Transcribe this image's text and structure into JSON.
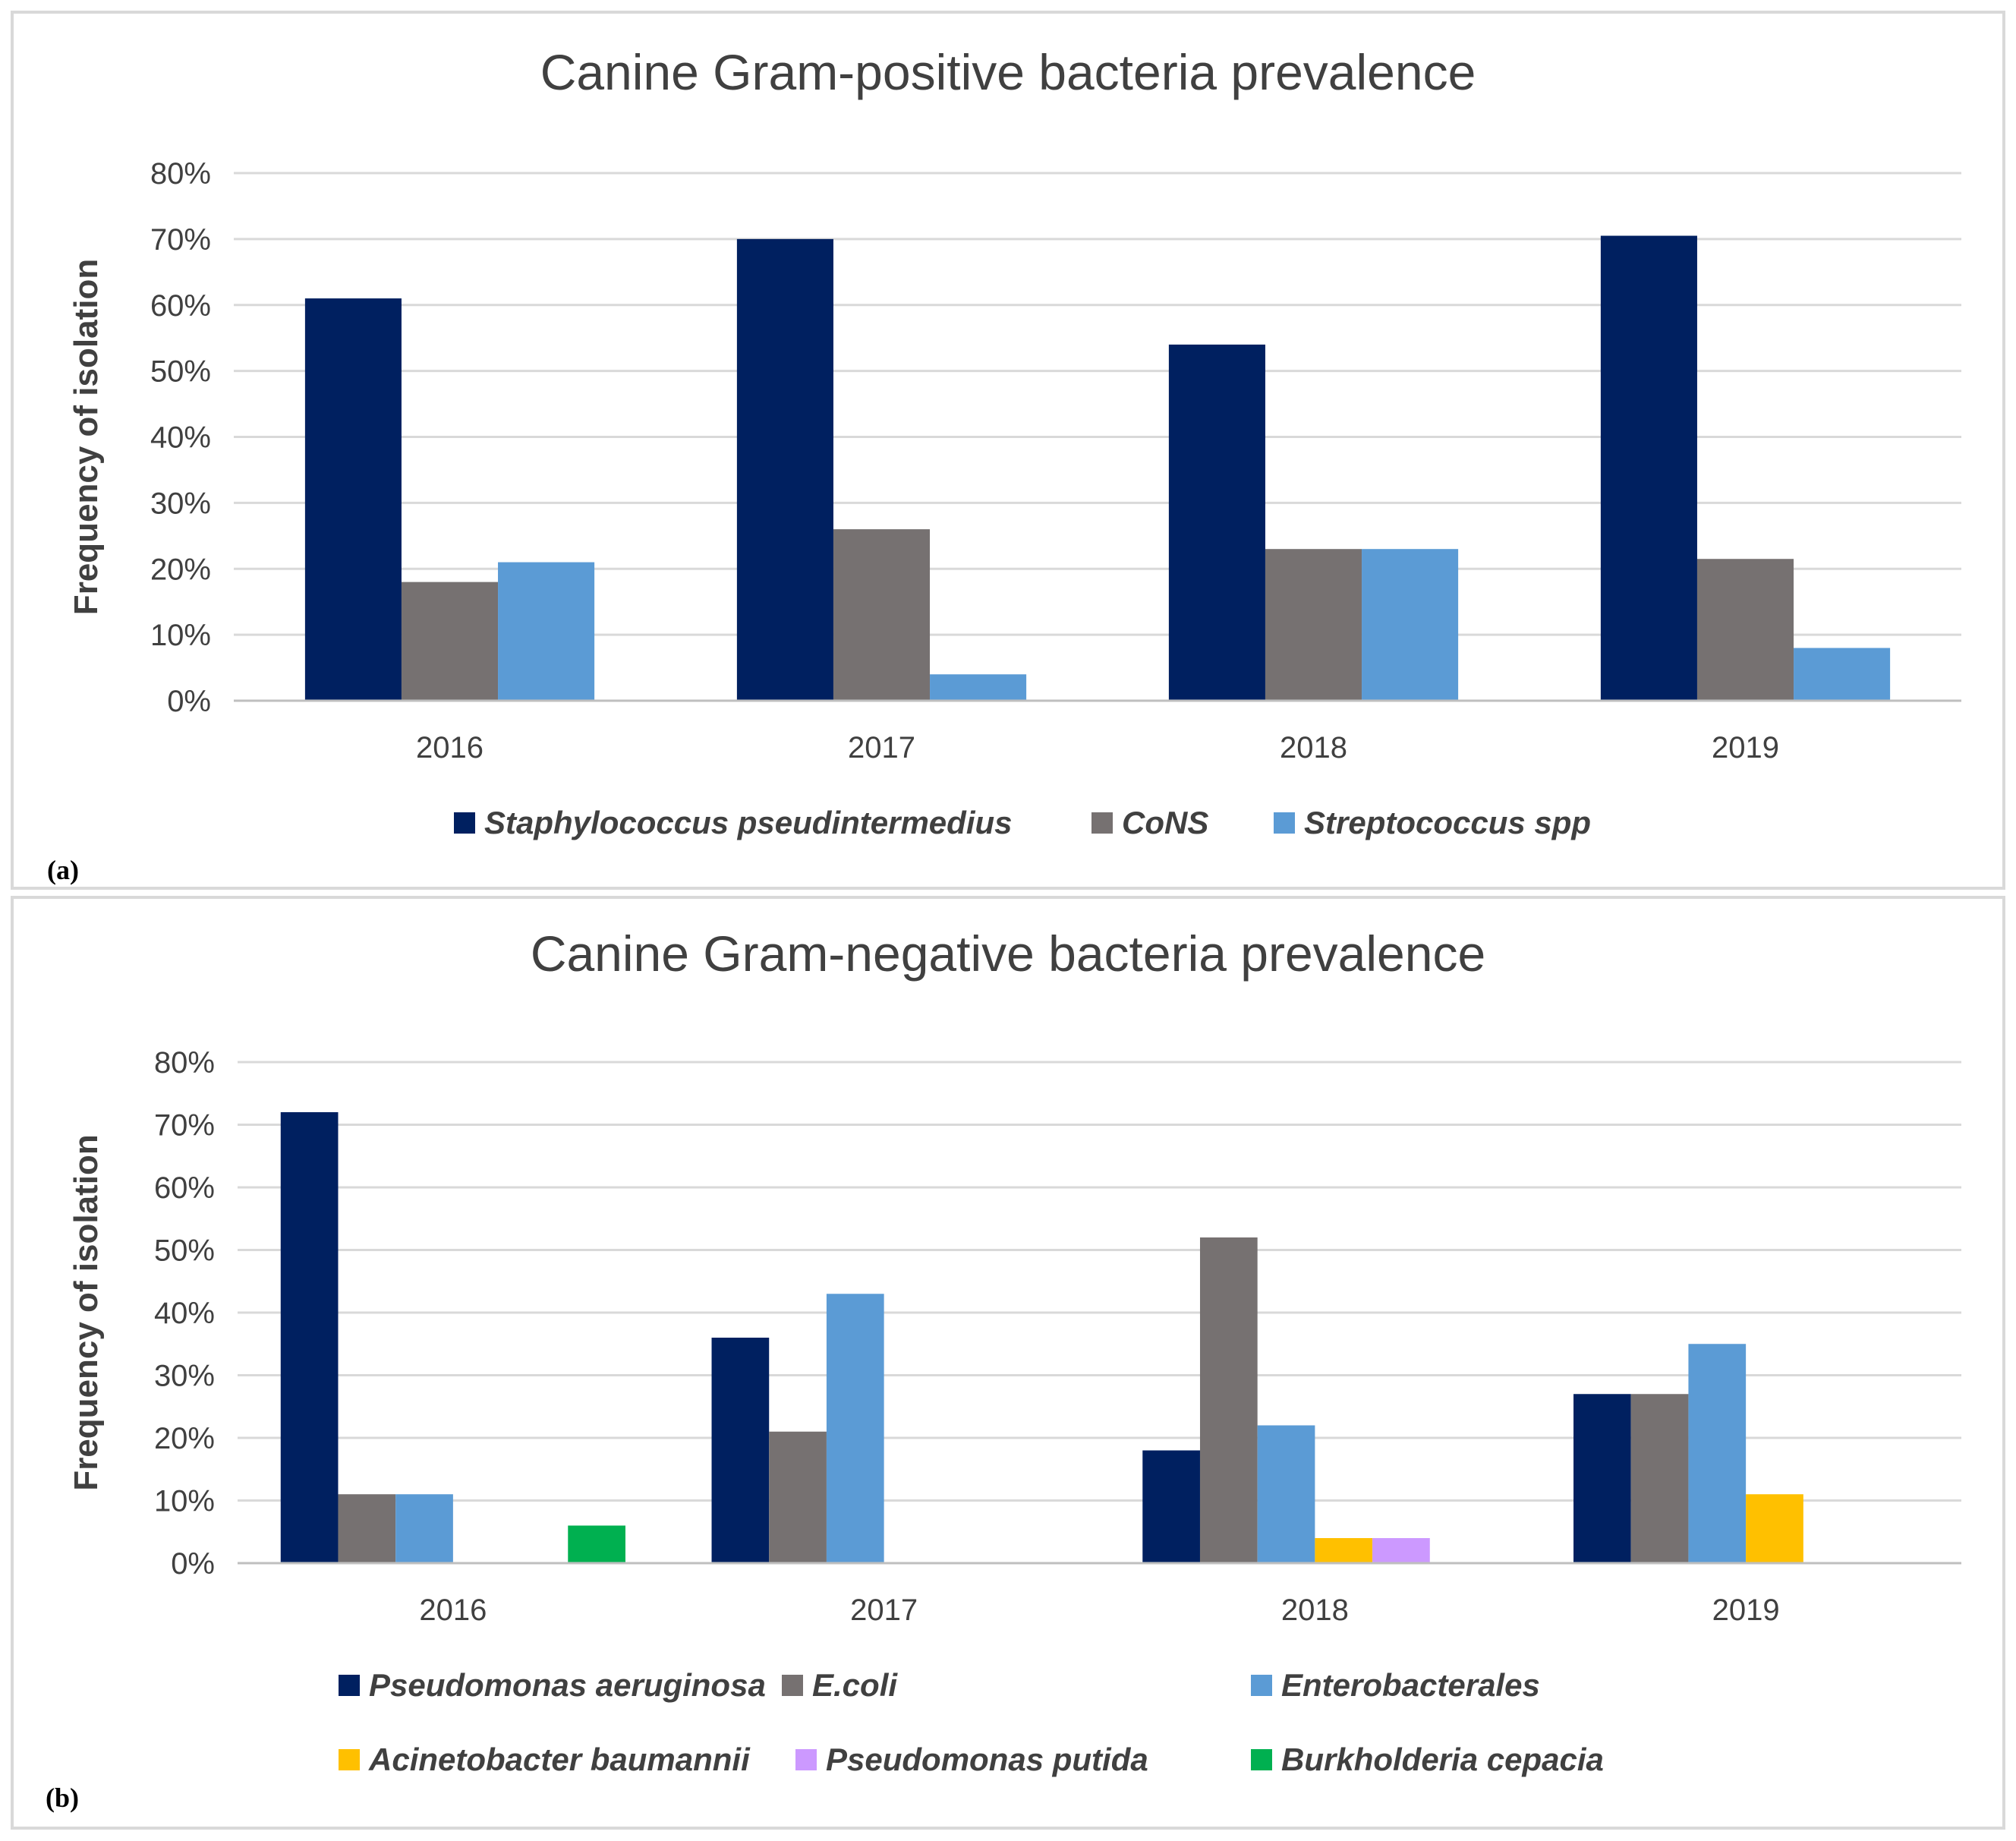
{
  "chart_data": [
    {
      "type": "bar",
      "title": "Canine Gram-positive bacteria prevalence",
      "xlabel": "",
      "ylabel": "Frequency of isolation",
      "categories": [
        "2016",
        "2017",
        "2018",
        "2019"
      ],
      "ylim": [
        0,
        0.8
      ],
      "yticks": [
        "0%",
        "10%",
        "20%",
        "30%",
        "40%",
        "50%",
        "60%",
        "70%",
        "80%"
      ],
      "series": [
        {
          "name": "Staphylococcus pseudintermedius",
          "color": "#002060",
          "values": [
            0.61,
            0.7,
            0.54,
            0.705
          ]
        },
        {
          "name": "CoNS",
          "color": "#767171",
          "values": [
            0.18,
            0.26,
            0.23,
            0.215
          ]
        },
        {
          "name": "Streptococcus spp",
          "color": "#5b9bd5",
          "values": [
            0.21,
            0.04,
            0.23,
            0.08
          ]
        }
      ],
      "legend": "bottom",
      "panel_label": "(a)"
    },
    {
      "type": "bar",
      "title": "Canine Gram-negative bacteria prevalence",
      "xlabel": "",
      "ylabel": "Frequency of isolation",
      "categories": [
        "2016",
        "2017",
        "2018",
        "2019"
      ],
      "ylim": [
        0,
        0.8
      ],
      "yticks": [
        "0%",
        "10%",
        "20%",
        "30%",
        "40%",
        "50%",
        "60%",
        "70%",
        "80%"
      ],
      "series": [
        {
          "name": "Pseudomonas aeruginosa",
          "color": "#002060",
          "values": [
            0.72,
            0.36,
            0.18,
            0.27
          ]
        },
        {
          "name": "E.coli",
          "color": "#767171",
          "values": [
            0.11,
            0.21,
            0.52,
            0.27
          ]
        },
        {
          "name": "Enterobacterales",
          "color": "#5b9bd5",
          "values": [
            0.11,
            0.43,
            0.22,
            0.35
          ]
        },
        {
          "name": "Acinetobacter baumannii",
          "color": "#ffc000",
          "values": [
            0,
            0,
            0.04,
            0.11
          ]
        },
        {
          "name": "Pseudomonas putida",
          "color": "#cc99ff",
          "values": [
            0,
            0,
            0.04,
            0
          ]
        },
        {
          "name": "Burkholderia cepacia",
          "color": "#00b050",
          "values": [
            0.06,
            0,
            0,
            0
          ]
        }
      ],
      "legend": "bottom",
      "panel_label": "(b)"
    }
  ]
}
